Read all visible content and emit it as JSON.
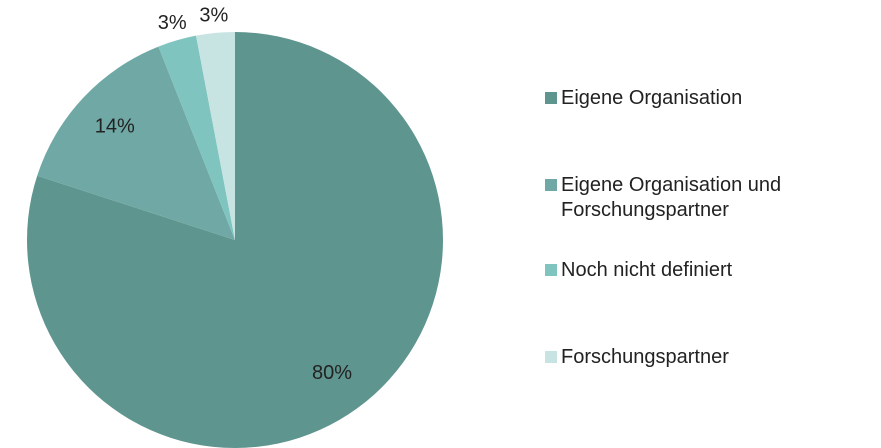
{
  "chart_data": {
    "type": "pie",
    "categories": [
      "Eigene Organisation",
      "Eigene Organisation und Forschungspartner",
      "Noch nicht definiert",
      "Forschungspartner"
    ],
    "values": [
      80,
      14,
      3,
      3
    ],
    "value_labels": [
      "80%",
      "14%",
      "3%",
      "3%"
    ],
    "colors": [
      "#5f958f",
      "#6fa8a5",
      "#7fc4bf",
      "#c8e4e2"
    ],
    "legend": "right"
  }
}
